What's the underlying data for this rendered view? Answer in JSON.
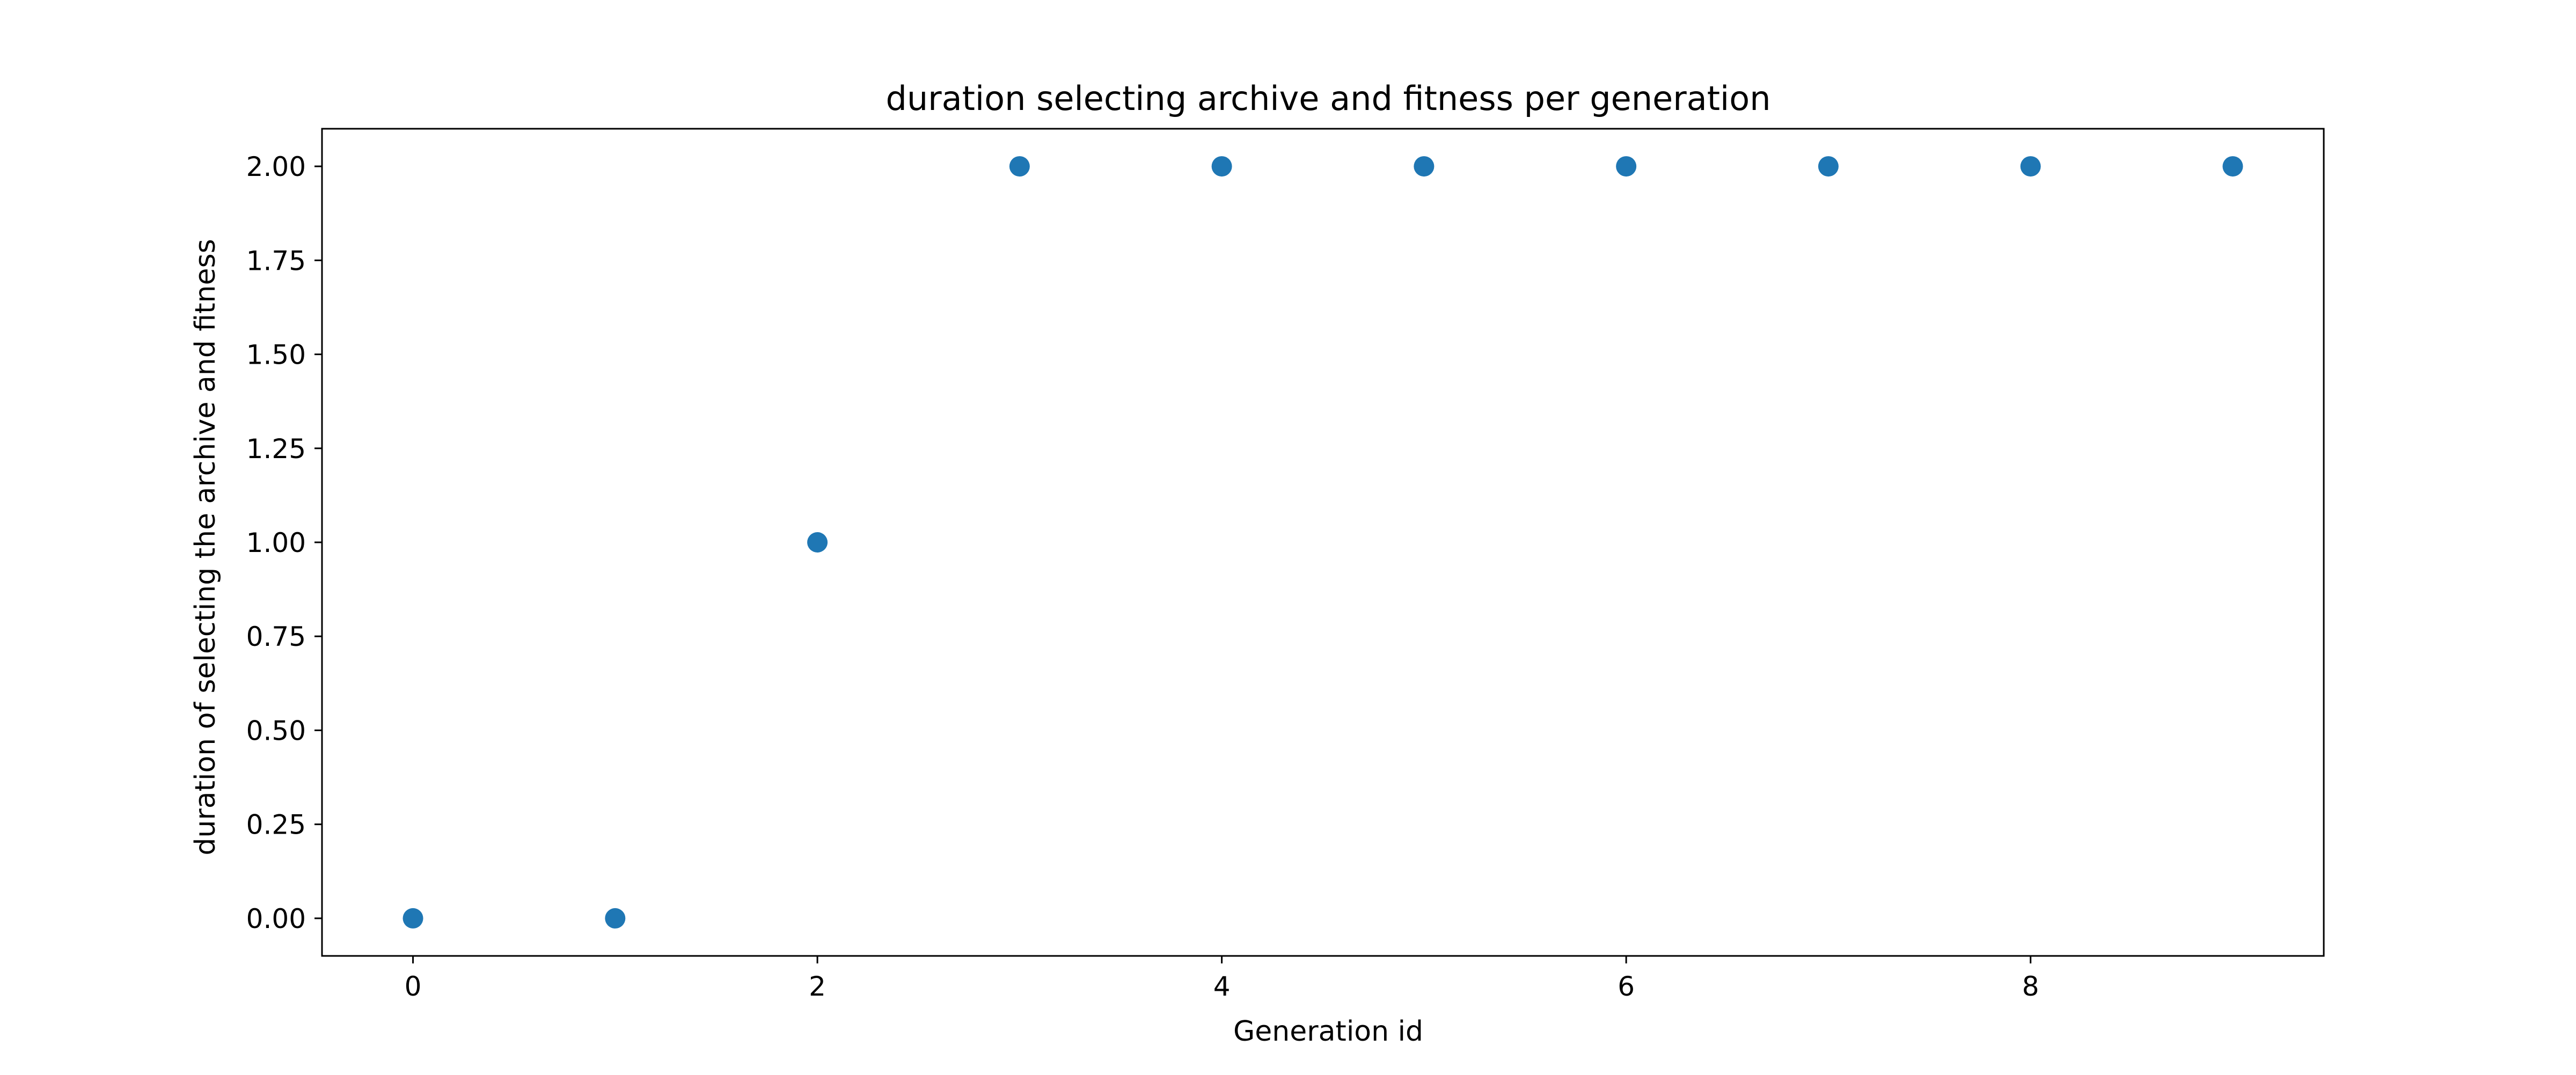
{
  "chart_data": {
    "type": "scatter",
    "title": "duration selecting archive and fitness per generation",
    "xlabel": "Generation id",
    "ylabel": "duration of selecting the archive and fitness",
    "x": [
      0,
      1,
      2,
      3,
      4,
      5,
      6,
      7,
      8,
      9
    ],
    "y": [
      0,
      0,
      1,
      2,
      2,
      2,
      2,
      2,
      2,
      2
    ],
    "xlim": [
      -0.45,
      9.45
    ],
    "ylim": [
      -0.1,
      2.1
    ],
    "xticks": [
      0,
      2,
      4,
      6,
      8
    ],
    "xtick_labels": [
      "0",
      "2",
      "4",
      "6",
      "8"
    ],
    "yticks": [
      0,
      0.25,
      0.5,
      0.75,
      1,
      1.25,
      1.5,
      1.75,
      2
    ],
    "ytick_labels": [
      "0.00",
      "0.25",
      "0.50",
      "0.75",
      "1.00",
      "1.25",
      "1.50",
      "1.75",
      "2.00"
    ],
    "grid": false,
    "legend": false,
    "marker_color": "#1f77b4"
  }
}
